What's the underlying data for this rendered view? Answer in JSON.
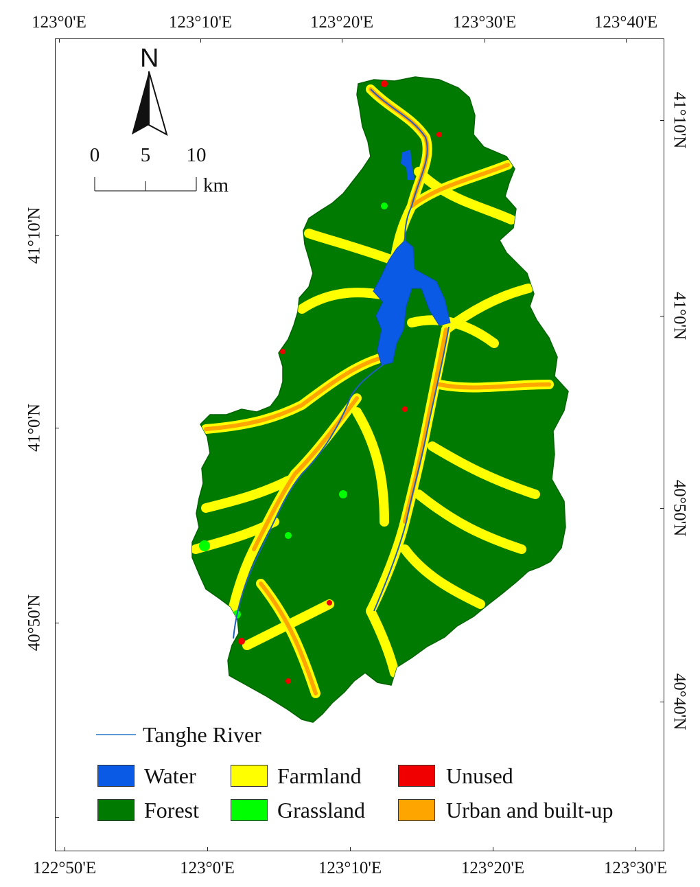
{
  "top_axis": [
    "123°0'E",
    "123°10'E",
    "123°20'E",
    "123°30'E",
    "123°40'E"
  ],
  "bottom_axis": [
    "122°50'E",
    "123°0'E",
    "123°10'E",
    "123°20'E",
    "123°30'E"
  ],
  "left_axis": [
    "41°10'N",
    "41°0'N",
    "40°50'N"
  ],
  "right_axis": [
    "41°10'N",
    "41°0'N",
    "40°50'N",
    "40°40'N"
  ],
  "north_arrow": {
    "label": "N",
    "icon": "north-arrow-icon"
  },
  "scale_bar": {
    "ticks": [
      "0",
      "5",
      "10"
    ],
    "unit": "km"
  },
  "legend": {
    "river_label": "Tanghe River",
    "river_color": "#5b9bd5",
    "items": [
      {
        "label": "Water",
        "color": "#0a5ae6"
      },
      {
        "label": "Farmland",
        "color": "#ffff00"
      },
      {
        "label": "Unused",
        "color": "#f00000"
      },
      {
        "label": "Forest",
        "color": "#007a00"
      },
      {
        "label": "Grassland",
        "color": "#00ff00"
      },
      {
        "label": "Urban and built-up",
        "color": "#ffa500"
      }
    ]
  }
}
